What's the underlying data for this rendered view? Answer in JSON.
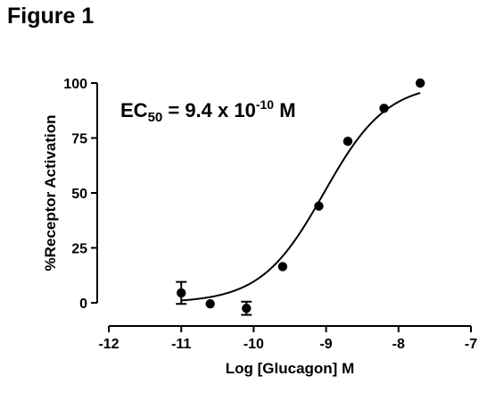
{
  "figure_label": "Figure 1",
  "chart_data": {
    "type": "scatter",
    "title": "",
    "xlabel": "Log [Glucagon] M",
    "ylabel": "%Receptor Activation",
    "xlim": [
      -12,
      -7
    ],
    "ylim": [
      0,
      100
    ],
    "x_ticks": [
      -12,
      -11,
      -10,
      -9,
      -8,
      -7
    ],
    "y_ticks": [
      0,
      25,
      50,
      75,
      100
    ],
    "annotation": {
      "prefix": "EC",
      "subscript": "50",
      "equals": " = 9.4 x 10",
      "superscript": "-10",
      "unit": " M"
    },
    "series": [
      {
        "points": [
          {
            "x": -11.0,
            "y": 4.5,
            "err": 5
          },
          {
            "x": -10.6,
            "y": -0.5,
            "err": 0
          },
          {
            "x": -10.1,
            "y": -2.5,
            "err": 3
          },
          {
            "x": -9.6,
            "y": 16.5,
            "err": 0
          },
          {
            "x": -9.1,
            "y": 44,
            "err": 0
          },
          {
            "x": -8.7,
            "y": 73.5,
            "err": 0
          },
          {
            "x": -8.2,
            "y": 88.5,
            "err": 0
          },
          {
            "x": -7.7,
            "y": 100,
            "err": 0
          }
        ],
        "fit": {
          "model": "sigmoidal dose-response",
          "bottom": 0,
          "top": 100,
          "log_ec50": -9.03,
          "hill_slope": 1.0
        }
      }
    ],
    "colors": {
      "marker": "#000000",
      "line": "#000000"
    },
    "grid": false,
    "legend": "none"
  }
}
